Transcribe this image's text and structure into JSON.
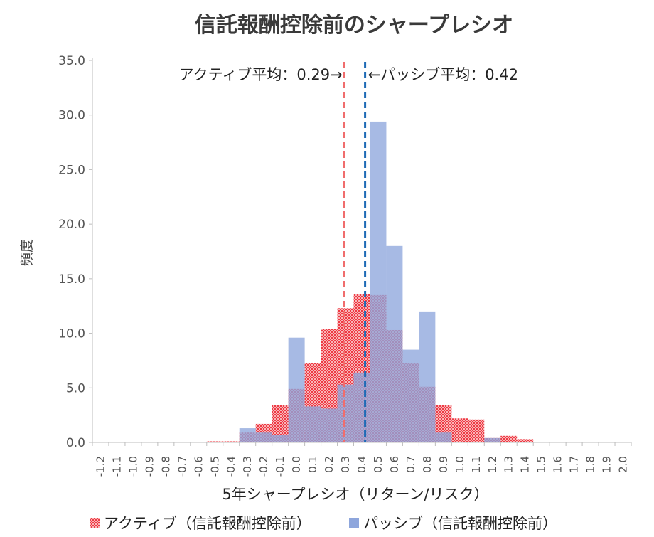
{
  "chart_data": {
    "type": "histogram",
    "title": "信託報酬控除前のシャープレシオ",
    "xlabel": "5年シャープレシオ（リターン/リスク）",
    "ylabel": "頻度",
    "ylim": [
      0,
      35
    ],
    "y_ticks": [
      "0.0",
      "5.0",
      "10.0",
      "15.0",
      "20.0",
      "25.0",
      "30.0",
      "35.0"
    ],
    "categories": [
      "-1.2",
      "-1.1",
      "-1.0",
      "-0.9",
      "-0.8",
      "-0.7",
      "-0.6",
      "-0.5",
      "-0.4",
      "-0.3",
      "-0.2",
      "-0.1",
      "0.0",
      "0.1",
      "0.2",
      "0.3",
      "0.4",
      "0.5",
      "0.6",
      "0.7",
      "0.8",
      "0.9",
      "1.0",
      "1.1",
      "1.2",
      "1.3",
      "1.4",
      "1.5",
      "1.6",
      "1.7",
      "1.8",
      "1.9",
      "2.0"
    ],
    "series": [
      {
        "name": "アクティブ（信託報酬控除前）",
        "color": "#f0505a",
        "pattern": "checker",
        "values": [
          0,
          0,
          0,
          0,
          0,
          0,
          0,
          0.1,
          0.1,
          0.9,
          1.7,
          3.4,
          4.9,
          7.3,
          10.4,
          12.3,
          13.6,
          13.5,
          10.3,
          7.3,
          5.1,
          3.4,
          2.2,
          2.1,
          0.4,
          0.6,
          0.3,
          0,
          0,
          0,
          0,
          0,
          0
        ]
      },
      {
        "name": "パッシブ（信託報酬控除前）",
        "color": "#8ea6dc",
        "pattern": "solid",
        "values": [
          0,
          0,
          0,
          0,
          0,
          0,
          0,
          0,
          0,
          1.3,
          0.9,
          0.7,
          9.6,
          3.3,
          3.1,
          5.3,
          6.4,
          29.4,
          18.0,
          8.5,
          12.0,
          0.9,
          0,
          0,
          0.4,
          0,
          0,
          0,
          0,
          0,
          0,
          0,
          0
        ]
      }
    ],
    "vlines": [
      {
        "value": 0.29,
        "color": "#f06d6d",
        "label": "アクティブ平均：0.29→",
        "label_anchor": "end"
      },
      {
        "value": 0.42,
        "color": "#1e6ab5",
        "label": "←パッシブ平均：0.42",
        "label_anchor": "start"
      }
    ],
    "legend": {
      "position": "bottom"
    }
  }
}
